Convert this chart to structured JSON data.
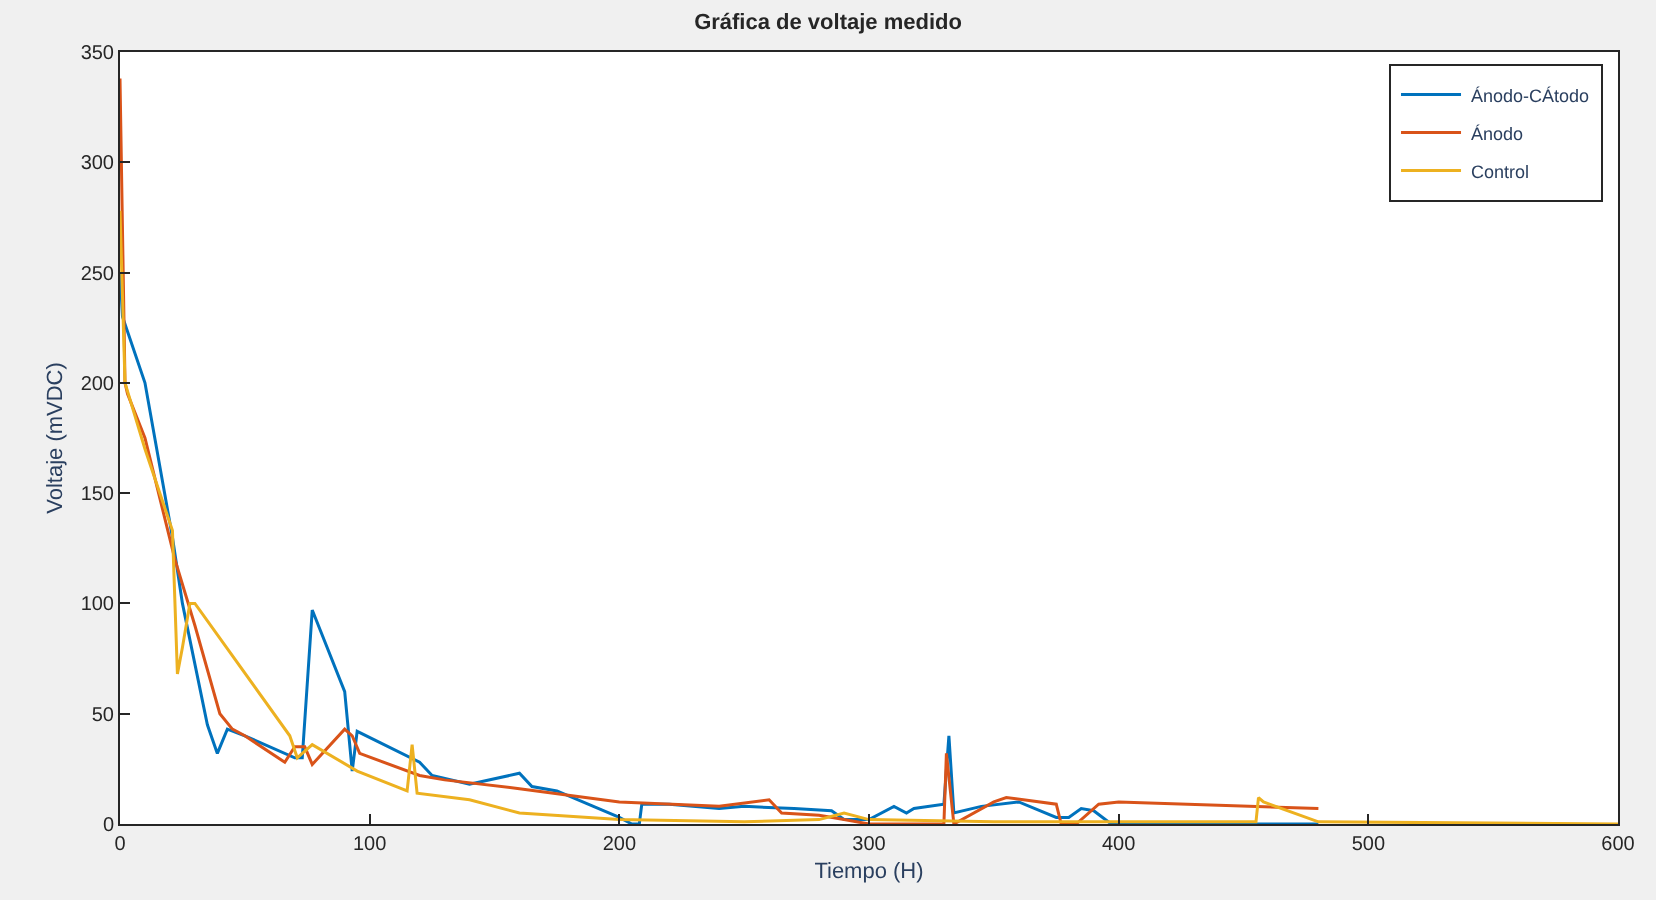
{
  "chart_data": {
    "type": "line",
    "title": "Gráfica de voltaje medido",
    "xlabel": "Tiempo (H)",
    "ylabel": "Voltaje (mVDC)",
    "xlim": [
      0,
      600
    ],
    "xticks": [
      0,
      100,
      200,
      300,
      400,
      500,
      600
    ],
    "ylim": [
      0,
      350
    ],
    "yticks": [
      0,
      50,
      100,
      150,
      200,
      250,
      300,
      350
    ],
    "legend": "top right",
    "marker": "none",
    "line_style": "solid",
    "series": [
      {
        "name": "Ánodo-CÁtodo",
        "color": "#0072bd",
        "x": [
          0,
          1,
          10,
          21,
          25,
          35,
          39,
          43,
          50,
          70,
          73,
          77,
          90,
          93,
          95,
          120,
          125,
          140,
          160,
          165,
          175,
          200,
          205,
          208,
          209,
          220,
          240,
          250,
          270,
          285,
          290,
          300,
          310,
          315,
          318,
          330,
          332,
          334,
          345,
          360,
          375,
          380,
          385,
          390,
          397,
          480
        ],
        "values": [
          250,
          230,
          200,
          130,
          100,
          45,
          32,
          43,
          40,
          30,
          30,
          97,
          60,
          24,
          42,
          28,
          22,
          18,
          23,
          17,
          15,
          3,
          0,
          0,
          9,
          9,
          7,
          8,
          7,
          6,
          2,
          2,
          8,
          5,
          7,
          9,
          40,
          5,
          8,
          10,
          3,
          3,
          7,
          6,
          0,
          0
        ]
      },
      {
        "name": "Ánodo",
        "color": "#d95319",
        "x": [
          0,
          2,
          3,
          10,
          22,
          30,
          40,
          45,
          50,
          66,
          70,
          74,
          77,
          90,
          93,
          96,
          120,
          130,
          160,
          200,
          240,
          260,
          265,
          280,
          290,
          300,
          330,
          331,
          334,
          350,
          355,
          375,
          377,
          383,
          392,
          400,
          480
        ],
        "values": [
          338,
          200,
          195,
          175,
          120,
          90,
          50,
          43,
          40,
          28,
          35,
          35,
          27,
          43,
          40,
          32,
          22,
          20,
          16,
          10,
          8,
          11,
          5,
          4,
          2,
          0,
          0,
          32,
          0,
          10,
          12,
          9,
          0,
          0,
          9,
          10,
          7
        ]
      },
      {
        "name": "Control",
        "color": "#edb120",
        "x": [
          0,
          2,
          10,
          21,
          23,
          25,
          28,
          30,
          68,
          71,
          77,
          95,
          115,
          117,
          119,
          140,
          160,
          200,
          250,
          280,
          290,
          300,
          350,
          400,
          455,
          456,
          458,
          480,
          600
        ],
        "values": [
          278,
          200,
          170,
          133,
          68,
          80,
          100,
          100,
          40,
          30,
          36,
          24,
          15,
          36,
          14,
          11,
          5,
          2,
          1,
          2,
          5,
          2,
          1,
          1,
          1,
          12,
          10,
          1,
          0
        ]
      }
    ]
  }
}
